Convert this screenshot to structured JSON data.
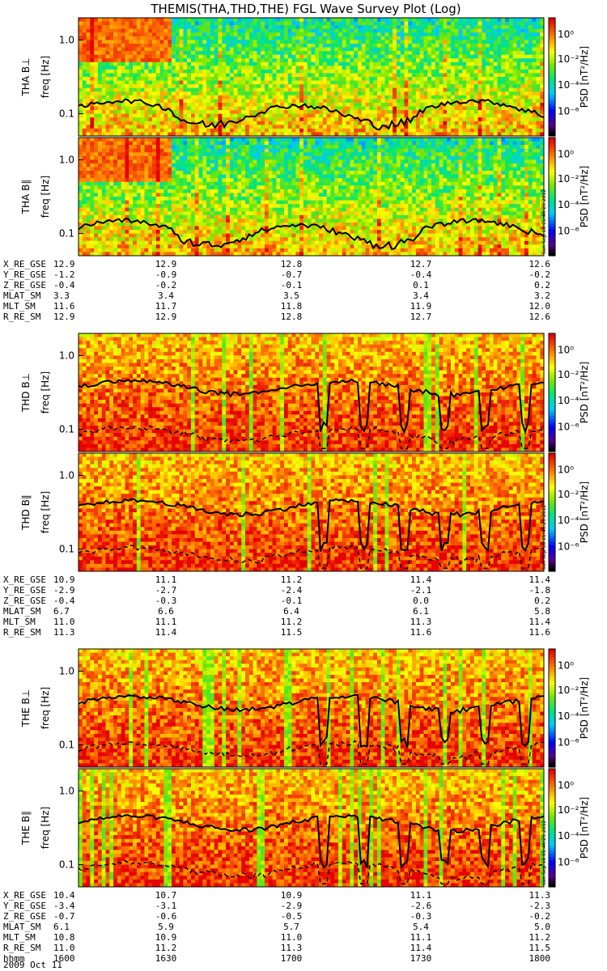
{
  "title": "THEMIS(THA,THD,THE) FGL Wave Survey Plot (Log)",
  "date_label": "2009 Oct 11",
  "stamp": "Sun Sep 18 01:46:29 2012",
  "colors": {
    "line": "#000000"
  },
  "chart_data": {
    "type": "heatmap",
    "ylim": [
      0.05,
      2.0
    ],
    "ylog": true,
    "y_ticks": [
      "1.0",
      "0.1"
    ],
    "colorbar": {
      "label": "PSD [nT²/Hz]",
      "ticks": [
        "10⁰",
        "10⁻²",
        "10⁻⁴",
        "10⁻⁶"
      ],
      "scale": "log"
    },
    "probes": [
      {
        "id": "THA",
        "panels": [
          {
            "ylabel": "THA B⊥",
            "yunit": "freq [Hz]",
            "intensity": "low",
            "line_solid": true,
            "line_dashed": false
          },
          {
            "ylabel": "THA B∥",
            "yunit": "freq [Hz]",
            "intensity": "low",
            "line_solid": true,
            "line_dashed": false
          }
        ],
        "ephemeris": [
          {
            "name": "X_RE_GSE",
            "values": [
              "12.9",
              "12.9",
              "12.8",
              "12.7",
              "12.6"
            ]
          },
          {
            "name": "Y_RE_GSE",
            "values": [
              "-1.2",
              "-0.9",
              "-0.7",
              "-0.4",
              "-0.2"
            ]
          },
          {
            "name": "Z_RE_GSE",
            "values": [
              "-0.4",
              "-0.2",
              "-0.1",
              "0.1",
              "0.2"
            ]
          },
          {
            "name": "MLAT_SM",
            "values": [
              "3.3",
              "3.4",
              "3.5",
              "3.4",
              "3.2"
            ]
          },
          {
            "name": "MLT_SM",
            "values": [
              "11.6",
              "11.7",
              "11.8",
              "11.9",
              "12.0"
            ]
          },
          {
            "name": "R_RE_SM",
            "values": [
              "12.9",
              "12.9",
              "12.8",
              "12.7",
              "12.6"
            ]
          }
        ]
      },
      {
        "id": "THD",
        "panels": [
          {
            "ylabel": "THD B⊥",
            "yunit": "freq [Hz]",
            "intensity": "high",
            "line_solid": true,
            "line_dashed": true
          },
          {
            "ylabel": "THD B∥",
            "yunit": "freq [Hz]",
            "intensity": "high",
            "line_solid": true,
            "line_dashed": true
          }
        ],
        "ephemeris": [
          {
            "name": "X_RE_GSE",
            "values": [
              "10.9",
              "11.1",
              "11.2",
              "11.4",
              "11.4"
            ]
          },
          {
            "name": "Y_RE_GSE",
            "values": [
              "-2.9",
              "-2.7",
              "-2.4",
              "-2.1",
              "-1.8"
            ]
          },
          {
            "name": "Z_RE_GSE",
            "values": [
              "-0.4",
              "-0.3",
              "-0.1",
              "0.0",
              "0.2"
            ]
          },
          {
            "name": "MLAT_SM",
            "values": [
              "6.7",
              "6.6",
              "6.4",
              "6.1",
              "5.8"
            ]
          },
          {
            "name": "MLT_SM",
            "values": [
              "11.0",
              "11.1",
              "11.2",
              "11.3",
              "11.4"
            ]
          },
          {
            "name": "R_RE_SM",
            "values": [
              "11.3",
              "11.4",
              "11.5",
              "11.6",
              "11.6"
            ]
          }
        ]
      },
      {
        "id": "THE",
        "panels": [
          {
            "ylabel": "THE B⊥",
            "yunit": "freq [Hz]",
            "intensity": "high",
            "line_solid": true,
            "line_dashed": true
          },
          {
            "ylabel": "THE B∥",
            "yunit": "freq [Hz]",
            "intensity": "high",
            "line_solid": true,
            "line_dashed": true
          }
        ],
        "ephemeris": [
          {
            "name": "X_RE_GSE",
            "values": [
              "10.4",
              "10.7",
              "10.9",
              "11.1",
              "11.3"
            ]
          },
          {
            "name": "Y_RE_GSE",
            "values": [
              "-3.4",
              "-3.1",
              "-2.9",
              "-2.6",
              "-2.3"
            ]
          },
          {
            "name": "Z_RE_GSE",
            "values": [
              "-0.7",
              "-0.6",
              "-0.5",
              "-0.3",
              "-0.2"
            ]
          },
          {
            "name": "MLAT_SM",
            "values": [
              "6.1",
              "5.9",
              "5.7",
              "5.4",
              "5.0"
            ]
          },
          {
            "name": "MLT_SM",
            "values": [
              "10.8",
              "10.9",
              "11.0",
              "11.1",
              "11.2"
            ]
          },
          {
            "name": "R_RE_SM",
            "values": [
              "11.0",
              "11.2",
              "11.3",
              "11.4",
              "11.5"
            ]
          },
          {
            "name": "hhmm",
            "values": [
              "1600",
              "1630",
              "1700",
              "1730",
              "1800"
            ]
          }
        ]
      }
    ]
  }
}
